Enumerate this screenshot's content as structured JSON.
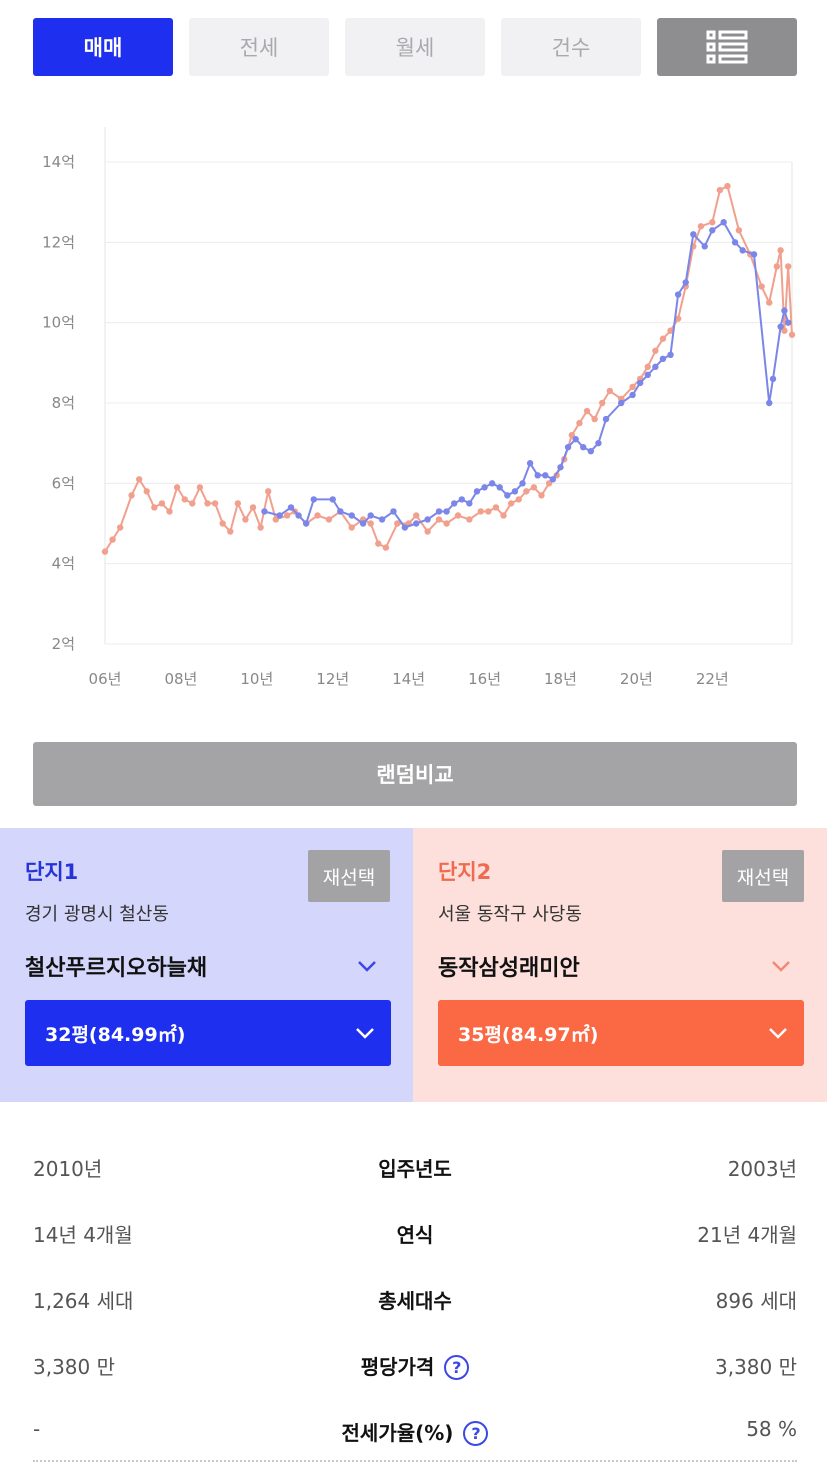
{
  "tabs": [
    {
      "label": "매매",
      "active": true
    },
    {
      "label": "전세",
      "active": false
    },
    {
      "label": "월세",
      "active": false
    },
    {
      "label": "건수",
      "active": false
    },
    {
      "icon": "list-icon"
    }
  ],
  "random_compare_label": "랜덤비교",
  "colors": {
    "complex1": "#1e2ff0",
    "complex2": "#fa6844",
    "line1": "#7b86e8",
    "line2": "#f1a08e"
  },
  "complex1": {
    "title": "단지1",
    "reselect_label": "재선택",
    "address": "경기 광명시 철산동",
    "name": "철산푸르지오하늘채",
    "size": "32평(84.99㎡)"
  },
  "complex2": {
    "title": "단지2",
    "reselect_label": "재선택",
    "address": "서울 동작구 사당동",
    "name": "동작삼성래미안",
    "size": "35평(84.97㎡)"
  },
  "info_rows": [
    {
      "left": "2010년",
      "label": "입주년도",
      "right": "2003년",
      "help": false
    },
    {
      "left": "14년 4개월",
      "label": "연식",
      "right": "21년 4개월",
      "help": false
    },
    {
      "left": "1,264 세대",
      "label": "총세대수",
      "right": "896 세대",
      "help": false
    },
    {
      "left": "3,380 만",
      "label": "평당가격",
      "right": "3,380 만",
      "help": true
    },
    {
      "left": "-",
      "label": "전세가율(%)",
      "right": "58 %",
      "help": true
    }
  ],
  "chart_data": {
    "type": "line",
    "y_ticks": [
      "14억",
      "12억",
      "10억",
      "8억",
      "6억",
      "4억",
      "2억"
    ],
    "x_ticks": [
      "06년",
      "08년",
      "10년",
      "12년",
      "14년",
      "16년",
      "18년",
      "20년",
      "22년"
    ],
    "ylim": [
      2,
      14
    ],
    "xlim": [
      2006,
      2024.1
    ],
    "grid": true,
    "series": [
      {
        "color": "#7b86e8",
        "points": [
          [
            2010.2,
            5.3
          ],
          [
            2010.6,
            5.2
          ],
          [
            2010.9,
            5.4
          ],
          [
            2011.1,
            5.2
          ],
          [
            2011.3,
            5.0
          ],
          [
            2011.5,
            5.6
          ],
          [
            2012.0,
            5.6
          ],
          [
            2012.2,
            5.3
          ],
          [
            2012.5,
            5.2
          ],
          [
            2012.8,
            5.0
          ],
          [
            2013.0,
            5.2
          ],
          [
            2013.3,
            5.1
          ],
          [
            2013.6,
            5.3
          ],
          [
            2013.9,
            4.9
          ],
          [
            2014.2,
            5.0
          ],
          [
            2014.5,
            5.1
          ],
          [
            2014.8,
            5.3
          ],
          [
            2015.0,
            5.3
          ],
          [
            2015.2,
            5.5
          ],
          [
            2015.4,
            5.6
          ],
          [
            2015.6,
            5.5
          ],
          [
            2015.8,
            5.8
          ],
          [
            2016.0,
            5.9
          ],
          [
            2016.2,
            6.0
          ],
          [
            2016.4,
            5.9
          ],
          [
            2016.6,
            5.7
          ],
          [
            2016.8,
            5.8
          ],
          [
            2017.0,
            6.0
          ],
          [
            2017.2,
            6.5
          ],
          [
            2017.4,
            6.2
          ],
          [
            2017.6,
            6.2
          ],
          [
            2017.8,
            6.1
          ],
          [
            2018.0,
            6.4
          ],
          [
            2018.2,
            6.9
          ],
          [
            2018.4,
            7.1
          ],
          [
            2018.6,
            6.9
          ],
          [
            2018.8,
            6.8
          ],
          [
            2019.0,
            7.0
          ],
          [
            2019.2,
            7.6
          ],
          [
            2019.6,
            8.0
          ],
          [
            2019.9,
            8.2
          ],
          [
            2020.1,
            8.5
          ],
          [
            2020.3,
            8.7
          ],
          [
            2020.5,
            8.9
          ],
          [
            2020.7,
            9.1
          ],
          [
            2020.9,
            9.2
          ],
          [
            2021.1,
            10.7
          ],
          [
            2021.3,
            11.0
          ],
          [
            2021.5,
            12.2
          ],
          [
            2021.8,
            11.9
          ],
          [
            2022.0,
            12.3
          ],
          [
            2022.3,
            12.5
          ],
          [
            2022.6,
            12.0
          ],
          [
            2022.8,
            11.8
          ],
          [
            2023.1,
            11.7
          ],
          [
            2023.5,
            8.0
          ],
          [
            2023.6,
            8.6
          ],
          [
            2023.8,
            9.9
          ],
          [
            2023.9,
            10.3
          ],
          [
            2024.0,
            10.0
          ]
        ]
      },
      {
        "color": "#f1a08e",
        "points": [
          [
            2006.0,
            4.3
          ],
          [
            2006.2,
            4.6
          ],
          [
            2006.4,
            4.9
          ],
          [
            2006.7,
            5.7
          ],
          [
            2006.9,
            6.1
          ],
          [
            2007.1,
            5.8
          ],
          [
            2007.3,
            5.4
          ],
          [
            2007.5,
            5.5
          ],
          [
            2007.7,
            5.3
          ],
          [
            2007.9,
            5.9
          ],
          [
            2008.1,
            5.6
          ],
          [
            2008.3,
            5.5
          ],
          [
            2008.5,
            5.9
          ],
          [
            2008.7,
            5.5
          ],
          [
            2008.9,
            5.5
          ],
          [
            2009.1,
            5.0
          ],
          [
            2009.3,
            4.8
          ],
          [
            2009.5,
            5.5
          ],
          [
            2009.7,
            5.1
          ],
          [
            2009.9,
            5.4
          ],
          [
            2010.1,
            4.9
          ],
          [
            2010.3,
            5.8
          ],
          [
            2010.5,
            5.1
          ],
          [
            2010.8,
            5.2
          ],
          [
            2011.0,
            5.3
          ],
          [
            2011.3,
            5.0
          ],
          [
            2011.6,
            5.2
          ],
          [
            2011.9,
            5.1
          ],
          [
            2012.2,
            5.3
          ],
          [
            2012.5,
            4.9
          ],
          [
            2012.8,
            5.1
          ],
          [
            2013.0,
            5.0
          ],
          [
            2013.2,
            4.5
          ],
          [
            2013.4,
            4.4
          ],
          [
            2013.7,
            5.0
          ],
          [
            2014.0,
            5.0
          ],
          [
            2014.2,
            5.2
          ],
          [
            2014.5,
            4.8
          ],
          [
            2014.8,
            5.1
          ],
          [
            2015.0,
            5.0
          ],
          [
            2015.3,
            5.2
          ],
          [
            2015.6,
            5.1
          ],
          [
            2015.9,
            5.3
          ],
          [
            2016.1,
            5.3
          ],
          [
            2016.3,
            5.4
          ],
          [
            2016.5,
            5.2
          ],
          [
            2016.7,
            5.5
          ],
          [
            2016.9,
            5.6
          ],
          [
            2017.1,
            5.8
          ],
          [
            2017.3,
            5.9
          ],
          [
            2017.5,
            5.7
          ],
          [
            2017.7,
            6.0
          ],
          [
            2017.9,
            6.2
          ],
          [
            2018.1,
            6.6
          ],
          [
            2018.3,
            7.2
          ],
          [
            2018.5,
            7.5
          ],
          [
            2018.7,
            7.8
          ],
          [
            2018.9,
            7.6
          ],
          [
            2019.1,
            8.0
          ],
          [
            2019.3,
            8.3
          ],
          [
            2019.6,
            8.1
          ],
          [
            2019.9,
            8.4
          ],
          [
            2020.1,
            8.6
          ],
          [
            2020.3,
            8.9
          ],
          [
            2020.5,
            9.3
          ],
          [
            2020.7,
            9.6
          ],
          [
            2020.9,
            9.8
          ],
          [
            2021.1,
            10.1
          ],
          [
            2021.3,
            10.9
          ],
          [
            2021.5,
            11.9
          ],
          [
            2021.7,
            12.4
          ],
          [
            2022.0,
            12.5
          ],
          [
            2022.2,
            13.3
          ],
          [
            2022.4,
            13.4
          ],
          [
            2022.7,
            12.3
          ],
          [
            2023.0,
            11.7
          ],
          [
            2023.3,
            10.9
          ],
          [
            2023.5,
            10.5
          ],
          [
            2023.7,
            11.4
          ],
          [
            2023.8,
            11.8
          ],
          [
            2023.9,
            9.8
          ],
          [
            2024.0,
            11.4
          ],
          [
            2024.1,
            9.7
          ]
        ]
      }
    ]
  }
}
